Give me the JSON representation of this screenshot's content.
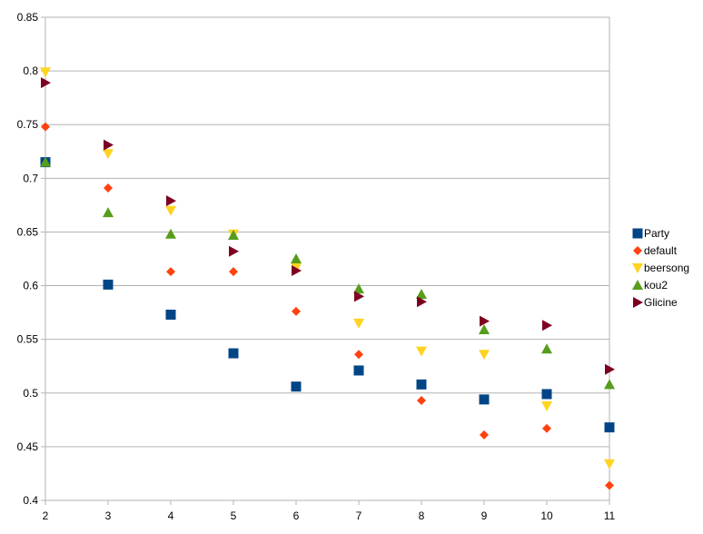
{
  "chart_data": {
    "type": "scatter",
    "title": "",
    "xlabel": "",
    "ylabel": "",
    "xlim": [
      2,
      11
    ],
    "ylim": [
      0.4,
      0.85
    ],
    "x_ticks": [
      "2",
      "3",
      "4",
      "5",
      "6",
      "7",
      "8",
      "9",
      "10",
      "11"
    ],
    "y_ticks": [
      "0.4",
      "0.45",
      "0.5",
      "0.55",
      "0.6",
      "0.65",
      "0.7",
      "0.75",
      "0.8",
      "0.85"
    ],
    "grid": "horizontal",
    "legend_position": "right",
    "x": [
      2,
      3,
      4,
      5,
      6,
      7,
      8,
      9,
      10,
      11
    ],
    "series": [
      {
        "name": "Party",
        "marker": "square",
        "color": "#004586",
        "values": [
          0.715,
          0.601,
          0.573,
          0.537,
          0.506,
          0.521,
          0.508,
          0.494,
          0.499,
          0.468
        ]
      },
      {
        "name": "default",
        "marker": "diamond",
        "color": "#ff420e",
        "values": [
          0.748,
          0.691,
          0.613,
          0.613,
          0.576,
          0.536,
          0.493,
          0.461,
          0.467,
          0.414
        ]
      },
      {
        "name": "beersong",
        "marker": "triangle-down",
        "color": "#ffd320",
        "values": [
          0.799,
          0.723,
          0.67,
          0.648,
          0.617,
          0.565,
          0.539,
          0.536,
          0.488,
          0.434
        ]
      },
      {
        "name": "kou2",
        "marker": "triangle-up",
        "color": "#579d1c",
        "values": [
          0.715,
          0.668,
          0.648,
          0.647,
          0.625,
          0.597,
          0.592,
          0.559,
          0.541,
          0.508
        ]
      },
      {
        "name": "Glicine",
        "marker": "triangle-right",
        "color": "#7e0021",
        "values": [
          0.789,
          0.731,
          0.679,
          0.632,
          0.614,
          0.59,
          0.585,
          0.567,
          0.563,
          0.522
        ]
      }
    ]
  }
}
